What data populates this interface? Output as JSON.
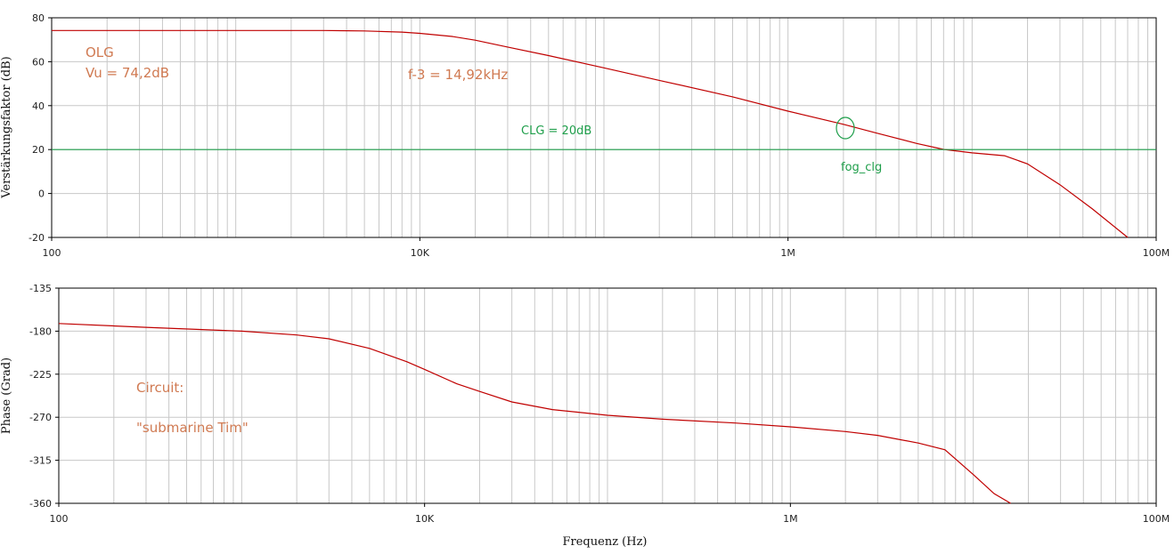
{
  "chart_data": [
    {
      "type": "line",
      "ylabel": "Verstärkungsfaktor (dB)",
      "xlabel": "",
      "xscale": "log",
      "xlim": [
        100,
        100000000
      ],
      "ylim": [
        -20,
        80
      ],
      "x_tick_labels": [
        "100",
        "10K",
        "1M",
        "100M"
      ],
      "x_tick_values": [
        100,
        10000,
        1000000,
        100000000
      ],
      "y_ticks": [
        80,
        60,
        40,
        20,
        0,
        -20
      ],
      "grid": true,
      "series": [
        {
          "color": "#c00000",
          "x": [
            100,
            1000,
            3000,
            5000,
            8000,
            10000,
            15000,
            20000,
            30000,
            50000,
            100000,
            200000,
            500000,
            1000000,
            2000000,
            3000000,
            5000000,
            7000000,
            10000000,
            15000000,
            20000000,
            30000000,
            45000000,
            70000000
          ],
          "y": [
            74.2,
            74.2,
            74.2,
            74.0,
            73.5,
            72.9,
            71.5,
            69.8,
            66.7,
            62.8,
            57.2,
            51.5,
            44.0,
            37.5,
            31.5,
            27.6,
            22.8,
            20.1,
            18.5,
            17.2,
            13.5,
            4.0,
            -7.0,
            -20.0
          ]
        },
        {
          "color": "#1e9e4a",
          "x": [
            100,
            100000000
          ],
          "y": [
            20,
            20
          ]
        }
      ],
      "annotations": [
        {
          "text": "OLG",
          "color": "#d07a52"
        },
        {
          "text": "Vu = 74,2dB",
          "color": "#d07a52"
        },
        {
          "text": "f-3 = 14,92kHz",
          "color": "#d07a52"
        },
        {
          "text": "CLG = 20dB",
          "color": "#1e9e4a"
        },
        {
          "text": "fog_clg",
          "color": "#1e9e4a"
        }
      ],
      "marker": {
        "shape": "circle",
        "x": 2000000,
        "y": 31,
        "color": "#1e9e4a"
      }
    },
    {
      "type": "line",
      "ylabel": "Phase (Grad)",
      "xlabel": "Frequenz (Hz)",
      "xscale": "log",
      "xlim": [
        100,
        100000000
      ],
      "ylim": [
        -360,
        -135
      ],
      "x_tick_labels": [
        "100",
        "10K",
        "1M",
        "100M"
      ],
      "x_tick_values": [
        100,
        10000,
        1000000,
        100000000
      ],
      "y_ticks": [
        -135,
        -180,
        -225,
        -270,
        -315,
        -360
      ],
      "grid": true,
      "series": [
        {
          "color": "#c00000",
          "x": [
            100,
            300,
            1000,
            2000,
            3000,
            5000,
            8000,
            10000,
            15000,
            20000,
            30000,
            50000,
            100000,
            200000,
            500000,
            1000000,
            2000000,
            3000000,
            5000000,
            7000000,
            10000000,
            13000000,
            16000000
          ],
          "y": [
            -172,
            -176,
            -180,
            -184,
            -188,
            -198,
            -212,
            -220,
            -235,
            -243,
            -254,
            -262,
            -268,
            -272,
            -276,
            -280,
            -285,
            -289,
            -297,
            -304,
            -330,
            -350,
            -360
          ]
        }
      ],
      "annotations": [
        {
          "text": "Circuit:",
          "color": "#d07a52"
        },
        {
          "text": "\"submarine Tim\"",
          "color": "#d07a52"
        }
      ]
    }
  ]
}
